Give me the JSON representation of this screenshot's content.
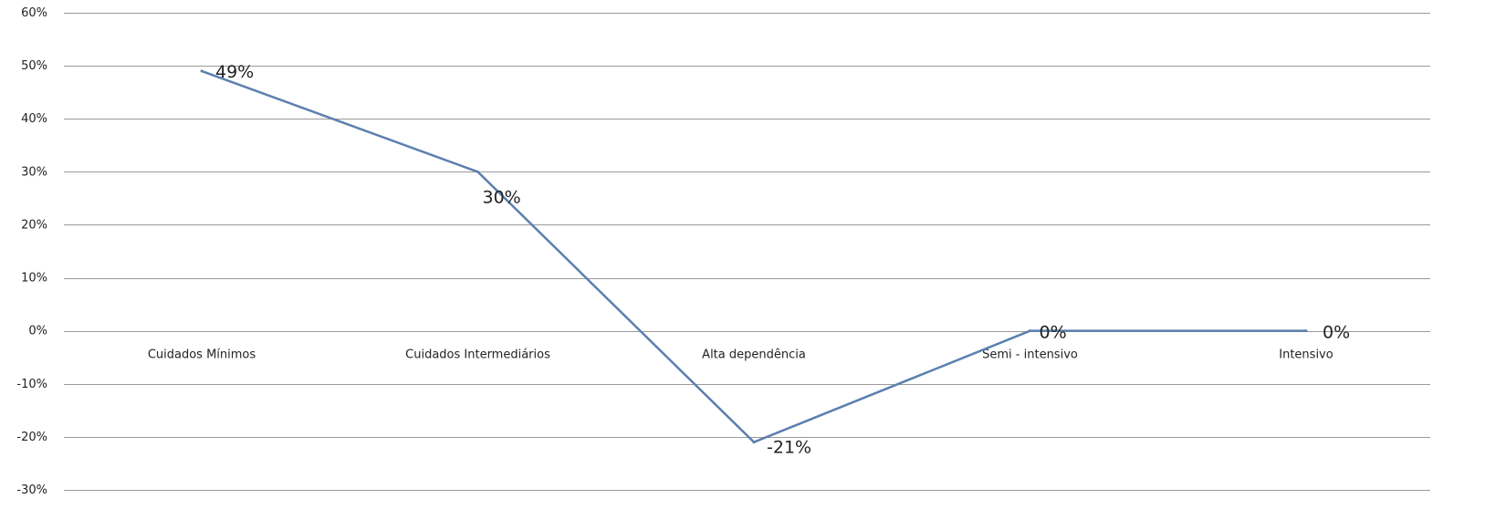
{
  "chart_data": {
    "type": "line",
    "categories": [
      "Cuidados Mínimos",
      "Cuidados Intermediários",
      "Alta dependência",
      "Semi - intensivo",
      "Intensivo"
    ],
    "series": [
      {
        "values": [
          49,
          30,
          -21,
          0,
          0
        ],
        "labels": [
          "49%",
          "30%",
          "-21%",
          "0%",
          "0%"
        ],
        "color": "#5b7fae"
      }
    ],
    "y_ticks": [
      60,
      50,
      40,
      30,
      20,
      10,
      0,
      -10,
      -20,
      -30
    ],
    "y_tick_labels": [
      "60%",
      "50%",
      "40%",
      "30%",
      "20%",
      "10%",
      "0%",
      "-10%",
      "-20%",
      "-30%"
    ],
    "ylim": [
      -30,
      60
    ],
    "grid": true,
    "legend": "none",
    "gridline_color": "#9a9a9a"
  }
}
